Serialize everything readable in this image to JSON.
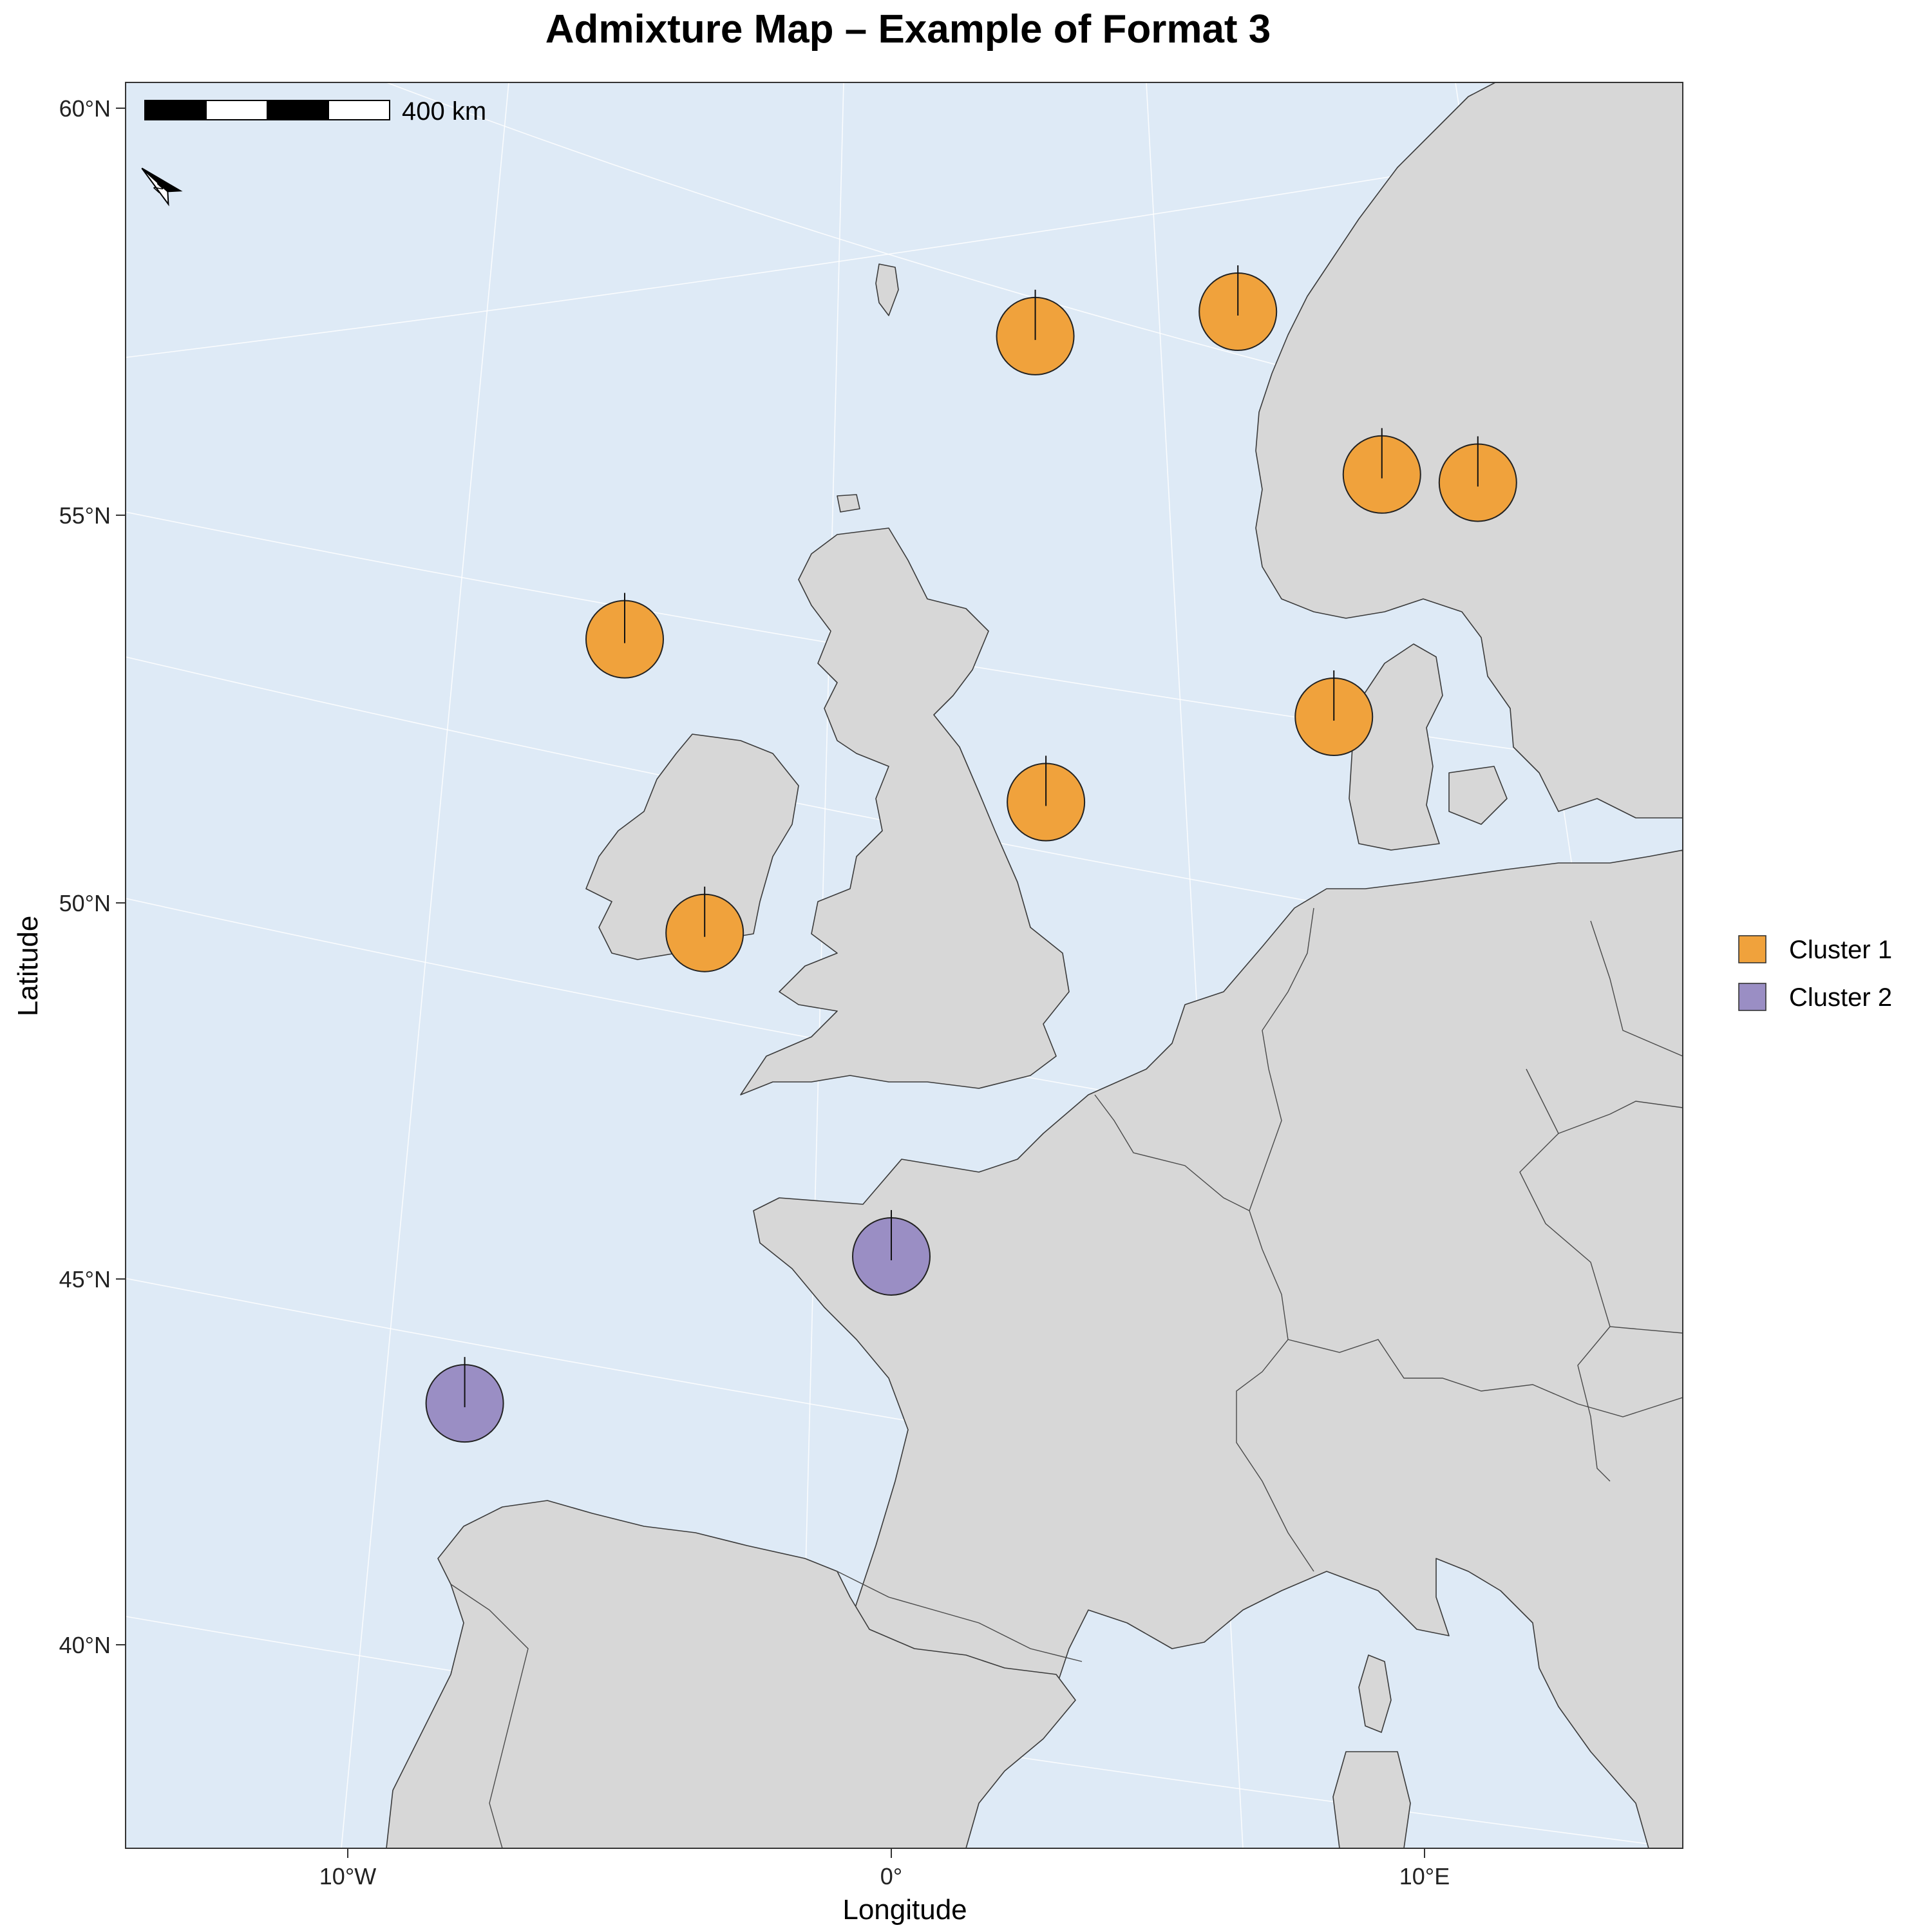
{
  "title": "Admixture Map – Example of Format 3",
  "xlabel": "Longitude",
  "ylabel": "Latitude",
  "colors": {
    "water": "#deeaf6",
    "land": "#d7d7d7",
    "cluster1": "#f0a23c",
    "cluster2": "#9a8ec4"
  },
  "scale_bar": {
    "label": "400 km"
  },
  "north_arrow": {
    "label": "N"
  },
  "legend": [
    {
      "name": "Cluster 1",
      "color": "#f0a23c"
    },
    {
      "name": "Cluster 2",
      "color": "#9a8ec4"
    }
  ],
  "lat_ticks": [
    "60°N",
    "55°N",
    "50°N",
    "45°N",
    "40°N"
  ],
  "lon_ticks": [
    "10°W",
    "0°",
    "10°E"
  ],
  "map_data": {
    "lon_range": [
      -14.5,
      14.5
    ],
    "lat_range": [
      37.5,
      60.3
    ],
    "sites": [
      {
        "lon": 2.7,
        "lat": 57.2,
        "cluster": "Cluster 1"
      },
      {
        "lon": 6.5,
        "lat": 57.5,
        "cluster": "Cluster 1"
      },
      {
        "lon": 9.2,
        "lat": 55.5,
        "cluster": "Cluster 1"
      },
      {
        "lon": 11.0,
        "lat": 55.4,
        "cluster": "Cluster 1"
      },
      {
        "lon": -5.0,
        "lat": 53.4,
        "cluster": "Cluster 1"
      },
      {
        "lon": 8.3,
        "lat": 52.4,
        "cluster": "Cluster 1"
      },
      {
        "lon": 2.9,
        "lat": 51.3,
        "cluster": "Cluster 1"
      },
      {
        "lon": -3.5,
        "lat": 49.6,
        "cluster": "Cluster 1"
      },
      {
        "lon": 0.0,
        "lat": 45.3,
        "cluster": "Cluster 2"
      },
      {
        "lon": -8.0,
        "lat": 43.3,
        "cluster": "Cluster 2"
      }
    ]
  }
}
